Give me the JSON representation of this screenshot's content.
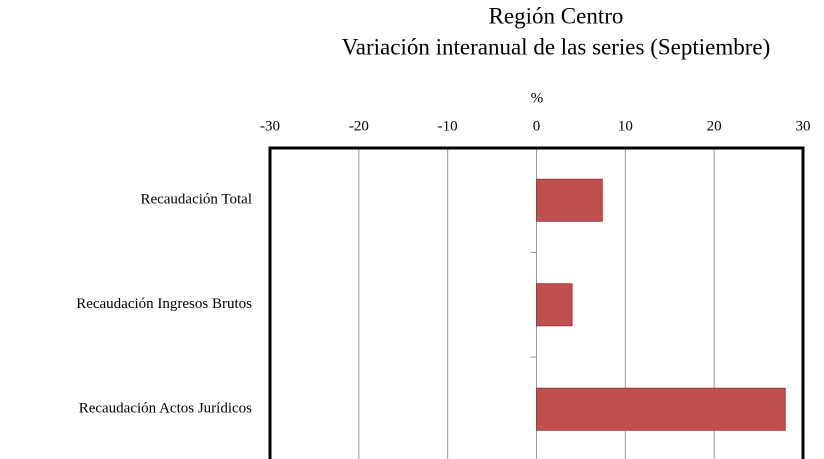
{
  "chart_data": {
    "type": "barh",
    "title": "Región Centro",
    "subtitle": "Variación interanual de las series (Septiembre)",
    "x_label": "%",
    "categories": [
      "Recaudación Total",
      "Recaudación Ingresos Brutos",
      "Recaudación Actos Jurídicos"
    ],
    "values": [
      7.4,
      4.0,
      28.0
    ],
    "color": "#c0504d",
    "xlim": [
      -30,
      30
    ],
    "xticks": [
      -30,
      -20,
      -10,
      0,
      10,
      20,
      30
    ],
    "grid": true
  }
}
